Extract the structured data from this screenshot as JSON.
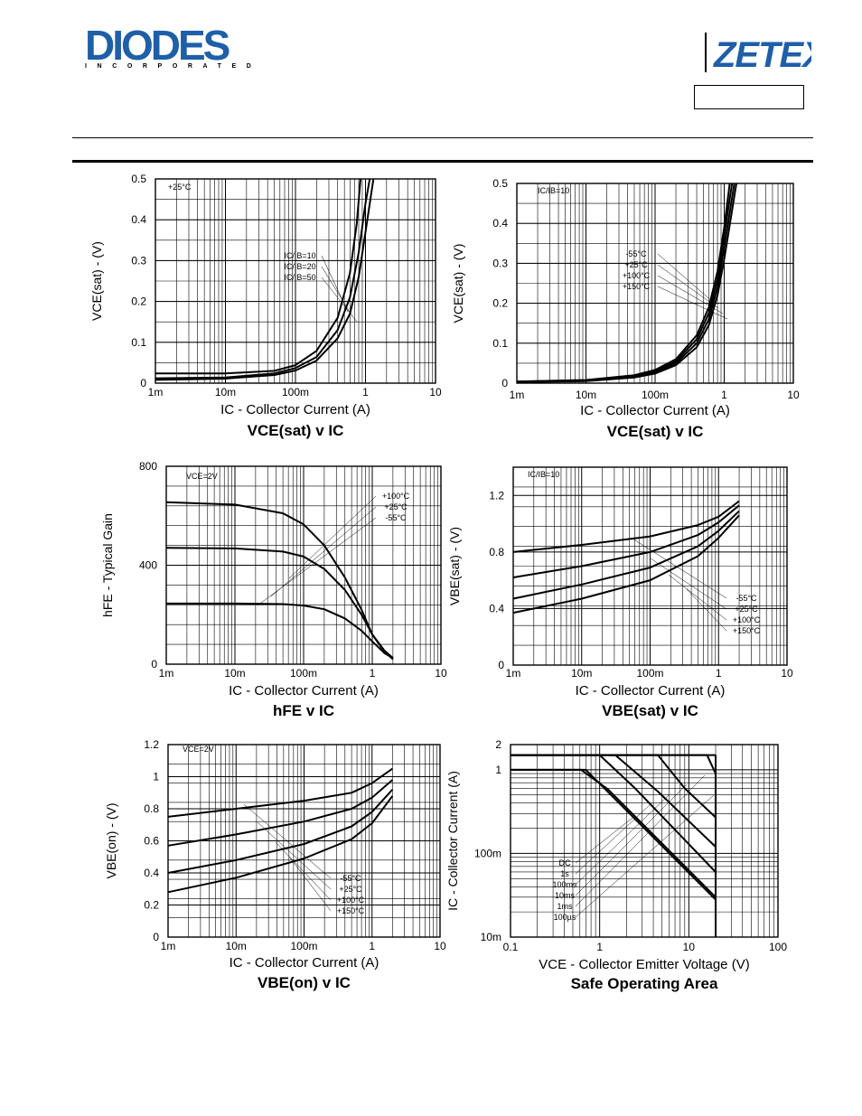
{
  "header": {
    "brand_left": "DIODES",
    "brand_left_sub": "INCORPORATED",
    "brand_right": "ZETEX"
  },
  "chart_data": [
    {
      "id": "c1",
      "type": "line",
      "title": "VCE(sat) v IC",
      "xlabel": "IC - Collector Current (A)",
      "ylabel": "VCE(sat) - (V)",
      "x_scale": "log",
      "xlim": [
        0.001,
        10
      ],
      "ylim": [
        0,
        0.5
      ],
      "x_ticks": [
        "1m",
        "10m",
        "100m",
        "1",
        "10"
      ],
      "y_ticks": [
        "0",
        "0.1",
        "0.2",
        "0.3",
        "0.4",
        "0.5"
      ],
      "corner_note": "+25°C",
      "legend": [
        "IC/IB=10",
        "IC/IB=20",
        "IC/IB=50"
      ],
      "series": [
        {
          "name": "IC/IB=10",
          "x": [
            0.001,
            0.01,
            0.05,
            0.1,
            0.2,
            0.4,
            0.6,
            0.8,
            1.0,
            1.3
          ],
          "y": [
            0.008,
            0.011,
            0.02,
            0.031,
            0.055,
            0.11,
            0.17,
            0.26,
            0.37,
            0.5
          ]
        },
        {
          "name": "IC/IB=20",
          "x": [
            0.001,
            0.01,
            0.05,
            0.1,
            0.2,
            0.4,
            0.6,
            0.8,
            1.0,
            1.15
          ],
          "y": [
            0.012,
            0.014,
            0.024,
            0.037,
            0.064,
            0.13,
            0.21,
            0.32,
            0.44,
            0.5
          ]
        },
        {
          "name": "IC/IB=50",
          "x": [
            0.001,
            0.01,
            0.05,
            0.1,
            0.2,
            0.4,
            0.6,
            0.75,
            0.85
          ],
          "y": [
            0.024,
            0.024,
            0.03,
            0.044,
            0.079,
            0.16,
            0.27,
            0.39,
            0.5
          ]
        }
      ]
    },
    {
      "id": "c2",
      "type": "line",
      "title": "VCE(sat) v IC",
      "xlabel": "IC - Collector Current (A)",
      "ylabel": "VCE(sat) - (V)",
      "x_scale": "log",
      "xlim": [
        0.001,
        10
      ],
      "ylim": [
        0,
        0.5
      ],
      "x_ticks": [
        "1m",
        "10m",
        "100m",
        "1",
        "10"
      ],
      "y_ticks": [
        "0",
        "0.1",
        "0.2",
        "0.3",
        "0.4",
        "0.5"
      ],
      "corner_note": "IC/IB=10",
      "legend": [
        "-55°C",
        "+25°C",
        "+100°C",
        "+150°C"
      ],
      "series": [
        {
          "name": "-55°C",
          "x": [
            0.001,
            0.01,
            0.05,
            0.1,
            0.2,
            0.4,
            0.6,
            0.8,
            1.0,
            1.2
          ],
          "y": [
            0.004,
            0.008,
            0.02,
            0.033,
            0.06,
            0.12,
            0.19,
            0.28,
            0.39,
            0.5
          ]
        },
        {
          "name": "+25°C",
          "x": [
            0.001,
            0.01,
            0.05,
            0.1,
            0.2,
            0.4,
            0.6,
            0.8,
            1.0,
            1.3
          ],
          "y": [
            0.004,
            0.007,
            0.018,
            0.03,
            0.055,
            0.11,
            0.175,
            0.26,
            0.37,
            0.5
          ]
        },
        {
          "name": "+100°C",
          "x": [
            0.001,
            0.01,
            0.05,
            0.1,
            0.2,
            0.4,
            0.6,
            0.8,
            1.0,
            1.4
          ],
          "y": [
            0.003,
            0.006,
            0.016,
            0.027,
            0.05,
            0.1,
            0.16,
            0.24,
            0.34,
            0.5
          ]
        },
        {
          "name": "+150°C",
          "x": [
            0.001,
            0.01,
            0.05,
            0.1,
            0.2,
            0.4,
            0.6,
            0.8,
            1.0,
            1.5
          ],
          "y": [
            0.003,
            0.005,
            0.014,
            0.024,
            0.045,
            0.09,
            0.145,
            0.22,
            0.31,
            0.5
          ]
        }
      ]
    },
    {
      "id": "c3",
      "type": "line",
      "title": "hFE v IC",
      "xlabel": "IC - Collector Current (A)",
      "ylabel": "hFE - Typical Gain",
      "x_scale": "log",
      "xlim": [
        0.001,
        10
      ],
      "ylim": [
        0,
        800
      ],
      "x_ticks": [
        "1m",
        "10m",
        "100m",
        "1",
        "10"
      ],
      "y_ticks": [
        "0",
        "400",
        "800"
      ],
      "corner_note": "VCE=2V",
      "legend": [
        "+100°C",
        "+25°C",
        "-55°C"
      ],
      "series": [
        {
          "name": "+100°C",
          "x": [
            0.001,
            0.01,
            0.05,
            0.1,
            0.2,
            0.4,
            0.7,
            1.0,
            1.5,
            2.0
          ],
          "y": [
            655,
            645,
            610,
            565,
            480,
            350,
            220,
            120,
            50,
            20
          ]
        },
        {
          "name": "+25°C",
          "x": [
            0.001,
            0.01,
            0.05,
            0.1,
            0.2,
            0.4,
            0.7,
            1.0,
            1.5,
            2.0
          ],
          "y": [
            470,
            468,
            455,
            435,
            385,
            300,
            200,
            120,
            55,
            25
          ]
        },
        {
          "name": "-55°C",
          "x": [
            0.001,
            0.01,
            0.05,
            0.1,
            0.2,
            0.4,
            0.7,
            1.0,
            1.5,
            2.0
          ],
          "y": [
            245,
            245,
            243,
            237,
            222,
            185,
            135,
            92,
            45,
            25
          ]
        }
      ]
    },
    {
      "id": "c4",
      "type": "line",
      "title": "VBE(sat) v IC",
      "xlabel": "IC - Collector Current (A)",
      "ylabel": "VBE(sat) - (V)",
      "x_scale": "log",
      "xlim": [
        0.001,
        10
      ],
      "ylim": [
        0,
        1.4
      ],
      "x_ticks": [
        "1m",
        "10m",
        "100m",
        "1",
        "10"
      ],
      "y_ticks": [
        "0",
        "0.4",
        "0.8",
        "1.2"
      ],
      "corner_note": "IC/IB=10",
      "legend": [
        "-55°C",
        "+25°C",
        "+100°C",
        "+150°C"
      ],
      "series": [
        {
          "name": "-55°C",
          "x": [
            0.001,
            0.01,
            0.1,
            0.5,
            1.0,
            2.0
          ],
          "y": [
            0.8,
            0.85,
            0.91,
            0.99,
            1.05,
            1.16
          ]
        },
        {
          "name": "+25°C",
          "x": [
            0.001,
            0.01,
            0.1,
            0.5,
            1.0,
            2.0
          ],
          "y": [
            0.62,
            0.7,
            0.8,
            0.92,
            1.01,
            1.13
          ]
        },
        {
          "name": "+100°C",
          "x": [
            0.001,
            0.01,
            0.1,
            0.5,
            1.0,
            2.0
          ],
          "y": [
            0.47,
            0.57,
            0.69,
            0.84,
            0.95,
            1.09
          ]
        },
        {
          "name": "+150°C",
          "x": [
            0.001,
            0.01,
            0.1,
            0.5,
            1.0,
            2.0
          ],
          "y": [
            0.37,
            0.47,
            0.6,
            0.77,
            0.9,
            1.06
          ]
        }
      ]
    },
    {
      "id": "c5",
      "type": "line",
      "title": "VBE(on) v IC",
      "xlabel": "IC - Collector Current (A)",
      "ylabel": "VBE(on) - (V)",
      "x_scale": "log",
      "xlim": [
        0.001,
        10
      ],
      "ylim": [
        0,
        1.2
      ],
      "x_ticks": [
        "1m",
        "10m",
        "100m",
        "1",
        "10"
      ],
      "y_ticks": [
        "0",
        "0.2",
        "0.4",
        "0.6",
        "0.8",
        "1",
        "1.2"
      ],
      "corner_note": "VCE=2V",
      "legend": [
        "-55°C",
        "+25°C",
        "+100°C",
        "+150°C"
      ],
      "series": [
        {
          "name": "-55°C",
          "x": [
            0.001,
            0.01,
            0.1,
            0.5,
            1.0,
            2.0
          ],
          "y": [
            0.75,
            0.8,
            0.85,
            0.9,
            0.96,
            1.05
          ]
        },
        {
          "name": "+25°C",
          "x": [
            0.001,
            0.01,
            0.1,
            0.5,
            1.0,
            2.0
          ],
          "y": [
            0.57,
            0.64,
            0.72,
            0.8,
            0.87,
            0.98
          ]
        },
        {
          "name": "+100°C",
          "x": [
            0.001,
            0.01,
            0.1,
            0.5,
            1.0,
            2.0
          ],
          "y": [
            0.4,
            0.48,
            0.58,
            0.69,
            0.78,
            0.92
          ]
        },
        {
          "name": "+150°C",
          "x": [
            0.001,
            0.01,
            0.1,
            0.5,
            1.0,
            2.0
          ],
          "y": [
            0.28,
            0.37,
            0.49,
            0.61,
            0.71,
            0.88
          ]
        }
      ]
    },
    {
      "id": "c6",
      "type": "line",
      "title": "Safe Operating Area",
      "xlabel": "VCE - Collector Emitter Voltage (V)",
      "ylabel": "IC - Collector Current (A)",
      "x_scale": "log",
      "y_scale": "log",
      "xlim": [
        0.1,
        100
      ],
      "ylim": [
        0.01,
        2
      ],
      "x_ticks": [
        "0.1",
        "1",
        "10",
        "100"
      ],
      "y_ticks": [
        "10m",
        "100m",
        "1",
        "2"
      ],
      "legend": [
        "DC",
        "1s",
        "100ms",
        "10ms",
        "1ms",
        "100µs"
      ],
      "series": [
        {
          "name": "DC",
          "x": [
            0.1,
            0.7,
            20
          ],
          "y": [
            1,
            1,
            0.028
          ]
        },
        {
          "name": "1s",
          "x": [
            0.1,
            0.62,
            1.25,
            20
          ],
          "y": [
            1,
            1,
            0.58,
            0.03
          ]
        },
        {
          "name": "100ms",
          "x": [
            0.1,
            1.0,
            2.5,
            20
          ],
          "y": [
            1.5,
            1.5,
            0.6,
            0.06
          ]
        },
        {
          "name": "10ms",
          "x": [
            0.1,
            1.5,
            4.5,
            20
          ],
          "y": [
            1.5,
            1.5,
            0.55,
            0.12
          ]
        },
        {
          "name": "1ms",
          "x": [
            0.1,
            4.5,
            9.0,
            20
          ],
          "y": [
            1.5,
            1.5,
            0.6,
            0.27
          ]
        },
        {
          "name": "100µs",
          "x": [
            0.1,
            16,
            20,
            20
          ],
          "y": [
            1.5,
            1.5,
            0.9,
            0.01
          ]
        }
      ]
    }
  ]
}
